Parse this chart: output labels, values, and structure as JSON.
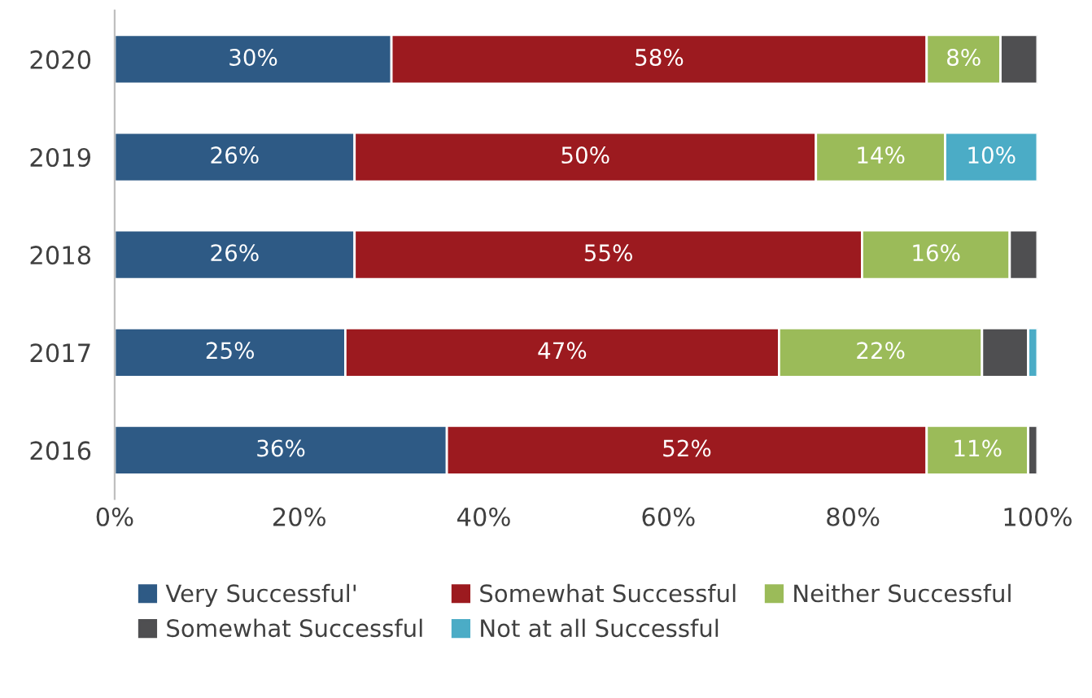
{
  "chart_data": {
    "type": "bar",
    "orientation": "horizontal",
    "stacked": true,
    "categories": [
      "2020",
      "2019",
      "2018",
      "2017",
      "2016"
    ],
    "series": [
      {
        "name": "Very Successful'",
        "color": "#2e5a85",
        "values": [
          30,
          26,
          26,
          25,
          36
        ],
        "value_labels": [
          "30%",
          "26%",
          "26%",
          "25%",
          "36%"
        ]
      },
      {
        "name": "Somewhat Successful",
        "color": "#9c1a1f",
        "values": [
          58,
          50,
          55,
          47,
          52
        ],
        "value_labels": [
          "58%",
          "50%",
          "55%",
          "47%",
          "52%"
        ]
      },
      {
        "name": "Neither Successful",
        "color": "#9bbb59",
        "values": [
          8,
          14,
          16,
          22,
          11
        ],
        "value_labels": [
          "8%",
          "14%",
          "16%",
          "22%",
          "11%"
        ]
      },
      {
        "name": "Somewhat Successful",
        "color": "#4f4f51",
        "values": [
          4,
          null,
          3,
          5,
          1
        ],
        "value_labels": [
          null,
          null,
          null,
          null,
          null
        ]
      },
      {
        "name": "Not at all Successful",
        "color": "#4bacc6",
        "values": [
          null,
          10,
          null,
          1,
          null
        ],
        "value_labels": [
          null,
          "10%",
          null,
          null,
          null
        ]
      }
    ],
    "xlim": [
      0,
      100
    ],
    "xticks": [
      {
        "value": 0,
        "label": "0%"
      },
      {
        "value": 20,
        "label": "20%"
      },
      {
        "value": 40,
        "label": "40%"
      },
      {
        "value": 60,
        "label": "60%"
      },
      {
        "value": 80,
        "label": "80%"
      },
      {
        "value": 100,
        "label": "100%"
      }
    ],
    "legend": "bottom",
    "grid": false
  }
}
